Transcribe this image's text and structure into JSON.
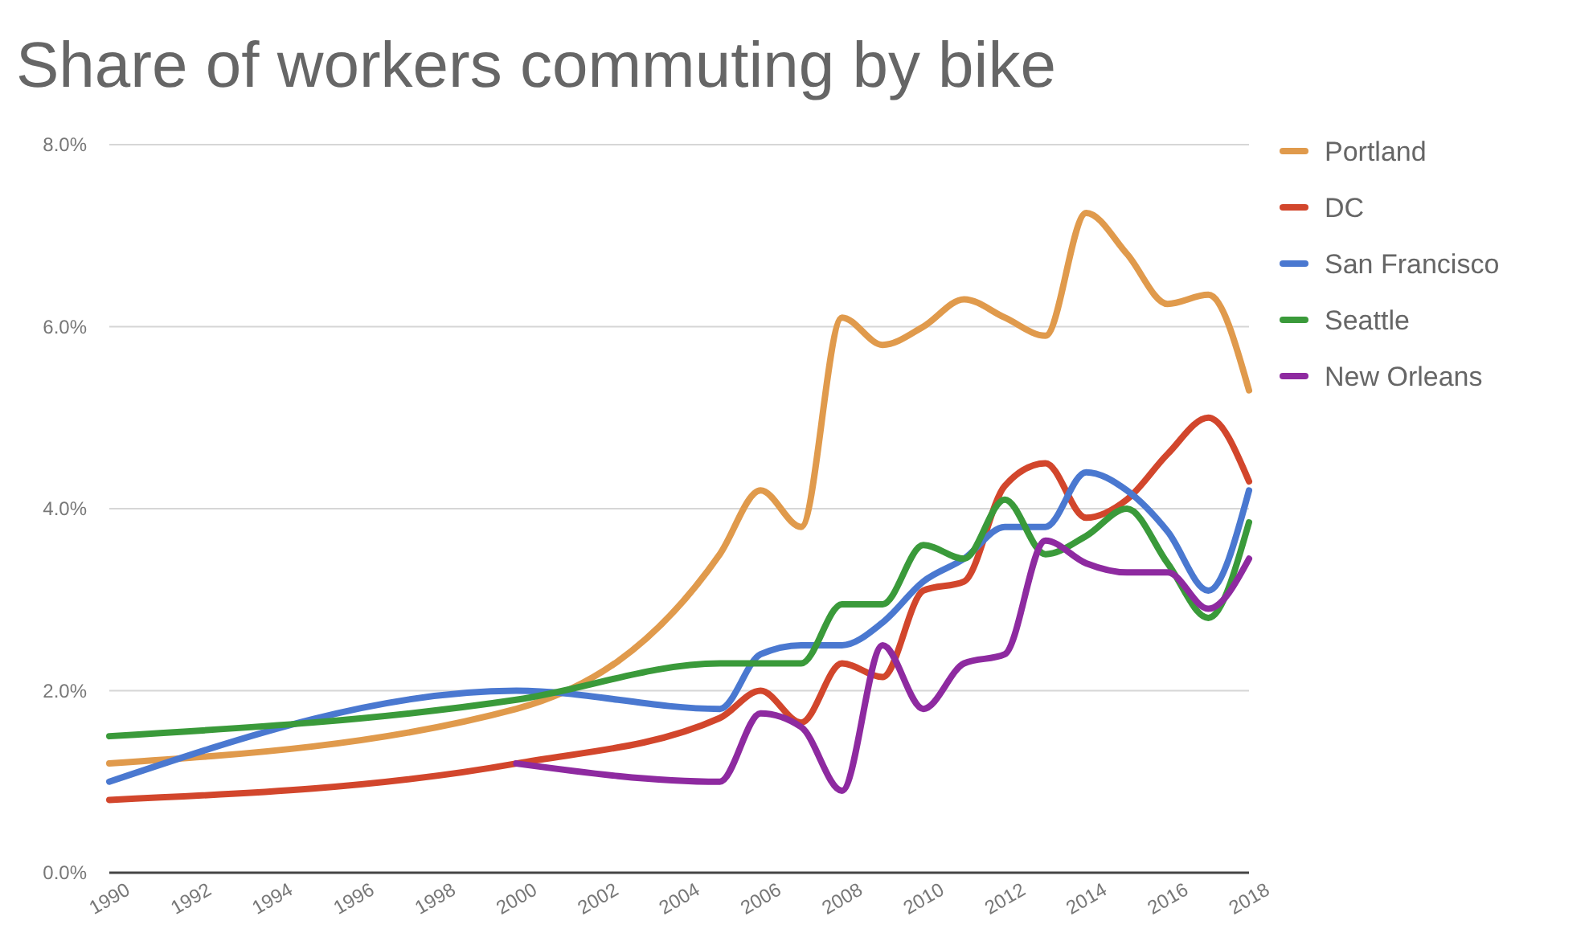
{
  "chart_data": {
    "type": "line",
    "title": "Share of workers commuting by bike",
    "xlim": [
      1990,
      2018
    ],
    "xticks": [
      1990,
      1992,
      1994,
      1996,
      1998,
      2000,
      2002,
      2004,
      2006,
      2008,
      2010,
      2012,
      2014,
      2016,
      2018
    ],
    "ylim": [
      0,
      8
    ],
    "yticks": [
      {
        "value": 0,
        "label": "0.0%"
      },
      {
        "value": 2,
        "label": "2.0%"
      },
      {
        "value": 4,
        "label": "4.0%"
      },
      {
        "value": 6,
        "label": "6.0%"
      },
      {
        "value": 8,
        "label": "8.0%"
      }
    ],
    "grid": "y",
    "legend": "top right",
    "marker": "none",
    "line_style": "solid",
    "series": [
      {
        "name": "Portland",
        "color": "#e09a4c",
        "x": [
          1990,
          2000,
          2005,
          2006,
          2007,
          2008,
          2009,
          2010,
          2011,
          2012,
          2013,
          2014,
          2015,
          2016,
          2017,
          2018
        ],
        "values": [
          1.2,
          1.8,
          3.5,
          4.2,
          3.8,
          6.1,
          5.8,
          6.0,
          6.3,
          6.1,
          5.9,
          7.25,
          6.8,
          6.25,
          6.35,
          5.3
        ]
      },
      {
        "name": "DC",
        "color": "#d2462c",
        "x": [
          1990,
          2000,
          2005,
          2006,
          2007,
          2008,
          2009,
          2010,
          2011,
          2012,
          2013,
          2014,
          2015,
          2016,
          2017,
          2018
        ],
        "values": [
          0.8,
          1.2,
          1.7,
          2.0,
          1.65,
          2.3,
          2.15,
          3.1,
          3.2,
          4.25,
          4.5,
          3.9,
          4.1,
          4.6,
          5.0,
          4.3
        ]
      },
      {
        "name": "San Francisco",
        "color": "#4a78d0",
        "x": [
          1990,
          2000,
          2005,
          2006,
          2007,
          2008,
          2009,
          2010,
          2011,
          2012,
          2013,
          2014,
          2015,
          2016,
          2017,
          2018
        ],
        "values": [
          1.0,
          2.0,
          1.8,
          2.4,
          2.5,
          2.5,
          2.75,
          3.2,
          3.45,
          3.8,
          3.8,
          4.4,
          4.2,
          3.75,
          3.1,
          4.2
        ]
      },
      {
        "name": "Seattle",
        "color": "#3a9a3a",
        "x": [
          1990,
          2000,
          2005,
          2006,
          2007,
          2008,
          2009,
          2010,
          2011,
          2012,
          2013,
          2014,
          2015,
          2016,
          2017,
          2018
        ],
        "values": [
          1.5,
          1.9,
          2.3,
          2.3,
          2.3,
          2.95,
          2.95,
          3.6,
          3.45,
          4.1,
          3.5,
          3.7,
          4.0,
          3.4,
          2.8,
          3.85
        ]
      },
      {
        "name": "New Orleans",
        "color": "#8e2aa0",
        "x": [
          2000,
          2005,
          2006,
          2007,
          2008,
          2009,
          2010,
          2011,
          2012,
          2013,
          2014,
          2015,
          2016,
          2017,
          2018
        ],
        "values": [
          1.2,
          1.0,
          1.75,
          1.6,
          0.9,
          2.5,
          1.8,
          2.3,
          2.4,
          3.65,
          3.4,
          3.3,
          3.3,
          2.9,
          3.45
        ]
      }
    ]
  }
}
